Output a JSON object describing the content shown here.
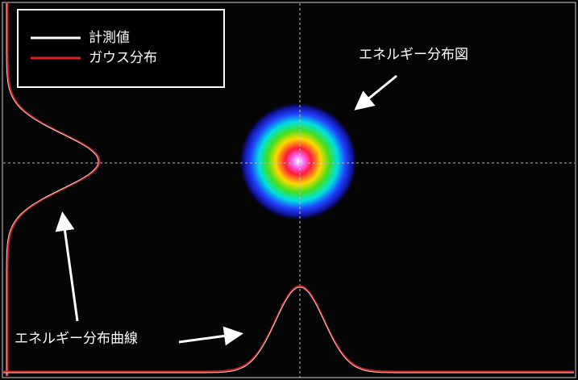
{
  "legend": {
    "items": [
      {
        "label": "計測値"
      },
      {
        "label": "ガウス分布"
      }
    ]
  },
  "annotations": {
    "map": "エネルギー分布図",
    "curve": "エネルギー分布曲線"
  }
}
